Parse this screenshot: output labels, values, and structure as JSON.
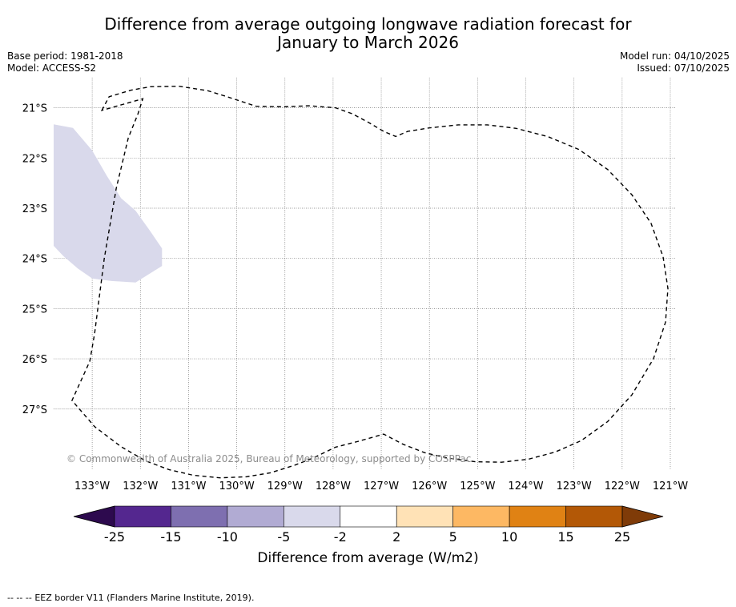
{
  "title": {
    "line1": "Difference from average outgoing longwave radiation forecast for",
    "line2": "January to March 2026"
  },
  "meta": {
    "base_period": "Base period: 1981-2018",
    "model": "Model: ACCESS-S2",
    "model_run": "Model run: 04/10/2025",
    "issued": "Issued: 07/10/2025"
  },
  "map": {
    "latitudes": [
      {
        "value": -21,
        "label": "21°S"
      },
      {
        "value": -22,
        "label": "22°S"
      },
      {
        "value": -23,
        "label": "23°S"
      },
      {
        "value": -24,
        "label": "24°S"
      },
      {
        "value": -25,
        "label": "25°S"
      },
      {
        "value": -26,
        "label": "26°S"
      },
      {
        "value": -27,
        "label": "27°S"
      }
    ],
    "longitudes": [
      {
        "value": -133,
        "label": "133°W"
      },
      {
        "value": -132,
        "label": "132°W"
      },
      {
        "value": -131,
        "label": "131°W"
      },
      {
        "value": -130,
        "label": "130°W"
      },
      {
        "value": -129,
        "label": "129°W"
      },
      {
        "value": -128,
        "label": "128°W"
      },
      {
        "value": -127,
        "label": "127°W"
      },
      {
        "value": -126,
        "label": "126°W"
      },
      {
        "value": -125,
        "label": "125°W"
      },
      {
        "value": -124,
        "label": "124°W"
      },
      {
        "value": -123,
        "label": "123°W"
      },
      {
        "value": -122,
        "label": "122°W"
      },
      {
        "value": -121,
        "label": "121°W"
      }
    ],
    "extent": {
      "lon_min": -133.8,
      "lon_max": -120.9,
      "lat_min": -28.2,
      "lat_max": -20.4
    },
    "anomaly_region": {
      "category": "-5 to -2",
      "color": "#d9d9eb",
      "coords": [
        [
          -133.8,
          -21.33
        ],
        [
          -133.4,
          -21.4
        ],
        [
          -133.0,
          -21.85
        ],
        [
          -132.7,
          -22.35
        ],
        [
          -132.4,
          -22.8
        ],
        [
          -132.1,
          -23.05
        ],
        [
          -131.8,
          -23.45
        ],
        [
          -131.55,
          -23.8
        ],
        [
          -131.55,
          -24.15
        ],
        [
          -131.8,
          -24.3
        ],
        [
          -132.1,
          -24.48
        ],
        [
          -132.6,
          -24.45
        ],
        [
          -133.0,
          -24.4
        ],
        [
          -133.3,
          -24.2
        ],
        [
          -133.6,
          -23.95
        ],
        [
          -133.8,
          -23.75
        ]
      ]
    },
    "eez_border": {
      "coords": [
        [
          -132.8,
          -21.05
        ],
        [
          -132.65,
          -20.78
        ],
        [
          -132.2,
          -20.65
        ],
        [
          -131.8,
          -20.58
        ],
        [
          -131.2,
          -20.57
        ],
        [
          -130.6,
          -20.66
        ],
        [
          -130.2,
          -20.78
        ],
        [
          -129.6,
          -20.97
        ],
        [
          -129.05,
          -20.98
        ],
        [
          -128.5,
          -20.96
        ],
        [
          -127.95,
          -21.0
        ],
        [
          -127.6,
          -21.12
        ],
        [
          -127.25,
          -21.3
        ],
        [
          -126.95,
          -21.47
        ],
        [
          -126.7,
          -21.57
        ],
        [
          -126.45,
          -21.47
        ],
        [
          -126.0,
          -21.4
        ],
        [
          -125.4,
          -21.34
        ],
        [
          -124.8,
          -21.34
        ],
        [
          -124.2,
          -21.41
        ],
        [
          -123.55,
          -21.57
        ],
        [
          -122.9,
          -21.83
        ],
        [
          -122.3,
          -22.23
        ],
        [
          -121.8,
          -22.73
        ],
        [
          -121.4,
          -23.3
        ],
        [
          -121.15,
          -23.97
        ],
        [
          -121.05,
          -24.6
        ],
        [
          -121.1,
          -25.27
        ],
        [
          -121.35,
          -26.0
        ],
        [
          -121.8,
          -26.72
        ],
        [
          -122.3,
          -27.25
        ],
        [
          -122.85,
          -27.63
        ],
        [
          -123.4,
          -27.86
        ],
        [
          -123.95,
          -28.0
        ],
        [
          -124.5,
          -28.06
        ],
        [
          -125.05,
          -28.05
        ],
        [
          -125.6,
          -27.98
        ],
        [
          -126.1,
          -27.87
        ],
        [
          -126.55,
          -27.7
        ],
        [
          -126.95,
          -27.5
        ],
        [
          -127.5,
          -27.65
        ],
        [
          -127.95,
          -27.76
        ],
        [
          -128.4,
          -27.97
        ],
        [
          -128.8,
          -28.12
        ],
        [
          -129.3,
          -28.27
        ],
        [
          -129.8,
          -28.35
        ],
        [
          -130.35,
          -28.37
        ],
        [
          -130.9,
          -28.32
        ],
        [
          -131.4,
          -28.21
        ],
        [
          -131.9,
          -28.03
        ],
        [
          -132.4,
          -27.75
        ],
        [
          -132.95,
          -27.35
        ],
        [
          -133.42,
          -26.83
        ],
        [
          -133.05,
          -26.05
        ],
        [
          -132.95,
          -25.5
        ],
        [
          -132.75,
          -24.0
        ],
        [
          -132.5,
          -22.6
        ],
        [
          -132.25,
          -21.6
        ],
        [
          -132.05,
          -21.12
        ],
        [
          -131.95,
          -20.82
        ]
      ]
    },
    "copyright": "© Commonwealth of Australia 2025, Bureau of Meteorology, supported by COSPPac"
  },
  "legend": {
    "title": "Difference from average (W/m2)",
    "ticks": [
      "-25",
      "-15",
      "-10",
      "-5",
      "-2",
      "2",
      "5",
      "10",
      "15",
      "25"
    ],
    "colors": [
      "#54278f",
      "#7e6fb0",
      "#b1abd3",
      "#d9d9eb",
      "#ffffff",
      "#ffe2b6",
      "#fdb863",
      "#e08214",
      "#b35806"
    ],
    "under_color": "#2d0a4e",
    "over_color": "#7f3b08"
  },
  "footnote": {
    "marker": "--  --  --",
    "text": "EEZ border V11 (Flanders Marine Institute, 2019)."
  }
}
